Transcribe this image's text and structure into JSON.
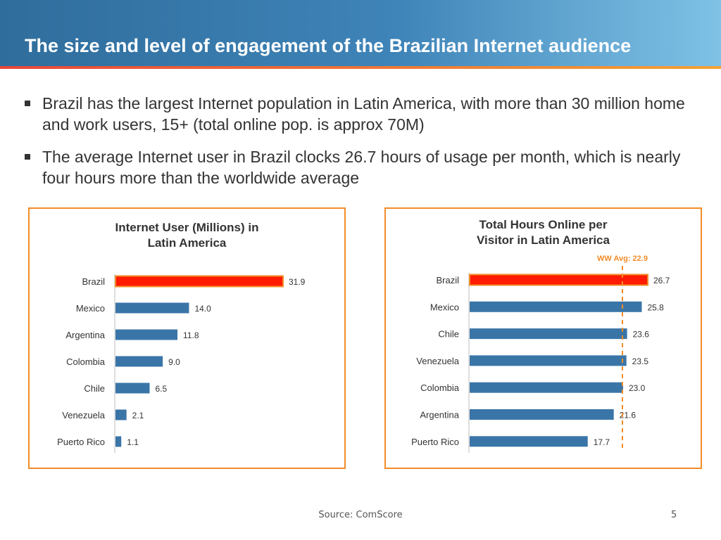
{
  "slide": {
    "title": "The size and level of engagement of the Brazilian Internet audience",
    "bullets": [
      "Brazil has the largest Internet population in Latin America, with more than 30 million home and work users, 15+ (total online pop. is approx 70M)",
      "The average Internet user in Brazil clocks 26.7 hours of usage per month, which is nearly four hours more than the worldwide average"
    ],
    "source": "Source:  ComScore",
    "page_number": "5"
  },
  "colors": {
    "header_start": "#2f6d9c",
    "header_end": "#7fc2e6",
    "accent_orange": "#f28c28",
    "bar_blue": "#3a75a7",
    "bar_highlight": "#ff1a00",
    "highlight_border": "#f28c28"
  },
  "chart_data": [
    {
      "type": "bar",
      "orientation": "horizontal",
      "title_lines": [
        "Internet User (Millions) in",
        "Latin America"
      ],
      "categories": [
        "Brazil",
        "Mexico",
        "Argentina",
        "Colombia",
        "Chile",
        "Venezuela",
        "Puerto Rico"
      ],
      "values": [
        31.9,
        14.0,
        11.8,
        9.0,
        6.5,
        2.1,
        1.1
      ],
      "value_labels": [
        "31.9",
        "14.0",
        "11.8",
        "9.0",
        "6.5",
        "2.1",
        "1.1"
      ],
      "highlight_category": "Brazil",
      "xlim": [
        0,
        31.9
      ]
    },
    {
      "type": "bar",
      "orientation": "horizontal",
      "title_lines": [
        "Total Hours Online per",
        "Visitor in Latin America"
      ],
      "categories": [
        "Brazil",
        "Mexico",
        "Chile",
        "Venezuela",
        "Colombia",
        "Argentina",
        "Puerto Rico"
      ],
      "values": [
        26.7,
        25.8,
        23.6,
        23.5,
        23.0,
        21.6,
        17.7
      ],
      "value_labels": [
        "26.7",
        "25.8",
        "23.6",
        "23.5",
        "23.0",
        "21.6",
        "17.7"
      ],
      "highlight_category": "Brazil",
      "xlim": [
        0,
        26.7
      ],
      "reference_line": {
        "value": 22.9,
        "label": "WW Avg: 22.9"
      }
    }
  ]
}
